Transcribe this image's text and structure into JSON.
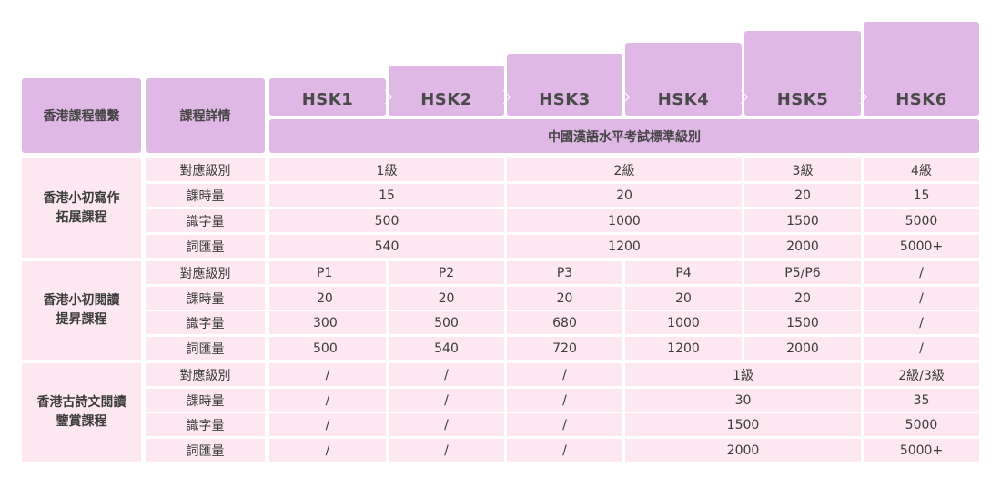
{
  "header": {
    "col_course": "香港課程體繫",
    "col_detail": "課程詳情",
    "exam_title": "中國漢語水平考試標準級別",
    "hsk_levels": [
      "HSK1",
      "HSK2",
      "HSK3",
      "HSK4",
      "HSK5",
      "HSK6"
    ]
  },
  "courses": [
    {
      "name_line1": "香港小初寫作",
      "name_line2": "拓展課程",
      "row_labels": [
        "對應級別",
        "課時量",
        "識字量",
        "詞匯量"
      ],
      "rows": [
        [
          "1級",
          "2級",
          "3級",
          "4級"
        ],
        [
          "15",
          "20",
          "20",
          "15"
        ],
        [
          "500",
          "1000",
          "1500",
          "5000"
        ],
        [
          "540",
          "1200",
          "2000",
          "5000+"
        ]
      ]
    },
    {
      "name_line1": "香港小初閱讀",
      "name_line2": "提昇課程",
      "row_labels": [
        "對應級別",
        "課時量",
        "識字量",
        "詞匯量"
      ],
      "rows": [
        [
          "P1",
          "P2",
          "P3",
          "P4",
          "P5/P6",
          "/"
        ],
        [
          "20",
          "20",
          "20",
          "20",
          "20",
          "/"
        ],
        [
          "300",
          "500",
          "680",
          "1000",
          "1500",
          "/"
        ],
        [
          "500",
          "540",
          "720",
          "1200",
          "2000",
          "/"
        ]
      ]
    },
    {
      "name_line1": "香港古詩文閱讀",
      "name_line2": "鑒賞課程",
      "row_labels": [
        "對應級別",
        "課時量",
        "識字量",
        "詞匯量"
      ],
      "rows": [
        [
          "/",
          "/",
          "/",
          "1級",
          "2級/3級"
        ],
        [
          "/",
          "/",
          "/",
          "30",
          "35"
        ],
        [
          "/",
          "/",
          "/",
          "1500",
          "5000"
        ],
        [
          "/",
          "/",
          "/",
          "2000",
          "5000+"
        ]
      ]
    }
  ]
}
